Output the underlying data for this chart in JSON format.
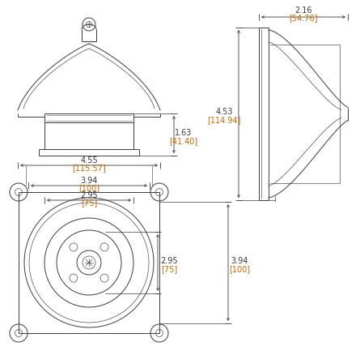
{
  "line_color": "#3a3a3a",
  "dim_color": "#3a3a3a",
  "dim_bracket_color": "#cc6600",
  "bg_color": "#ffffff",
  "dims": {
    "w455": [
      "4.55",
      "115.57"
    ],
    "h163": [
      "1.63",
      "41.40"
    ],
    "w394": [
      "3.94",
      "100"
    ],
    "w295": [
      "2.95",
      "75"
    ],
    "w216": [
      "2.16",
      "54.76"
    ],
    "h453": [
      "4.53",
      "114.94"
    ],
    "h394": [
      "3.94",
      "100"
    ],
    "h295": [
      "2.95",
      "75"
    ]
  }
}
